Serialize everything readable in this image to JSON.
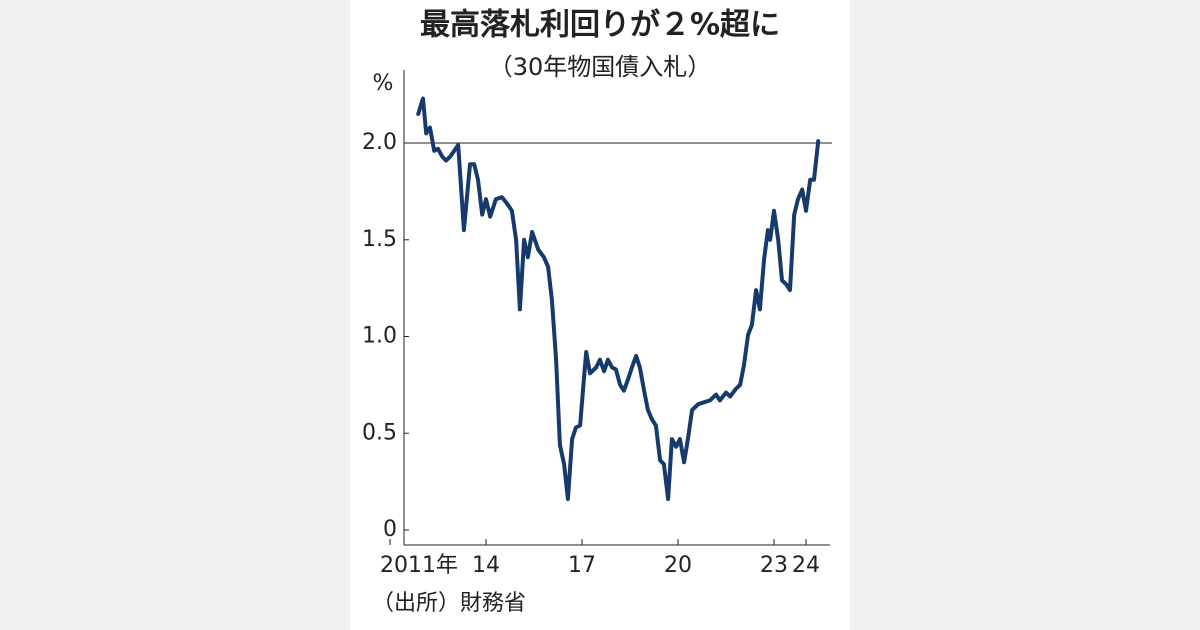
{
  "chart_data": {
    "type": "line",
    "title": "最高落札利回りが２%超に",
    "subtitle": "（30年物国債入札）",
    "y_label": "%",
    "source": "（出所）財務省",
    "x": [
      2011.88,
      2012.03,
      2012.13,
      2012.25,
      2012.38,
      2012.5,
      2012.63,
      2012.75,
      2012.88,
      2013.13,
      2013.31,
      2013.5,
      2013.63,
      2013.75,
      2013.88,
      2014,
      2014.13,
      2014.31,
      2014.5,
      2014.69,
      2014.81,
      2014.94,
      2015.06,
      2015.19,
      2015.31,
      2015.44,
      2015.63,
      2015.81,
      2015.94,
      2016.06,
      2016.19,
      2016.31,
      2016.44,
      2016.56,
      2016.69,
      2016.81,
      2016.94,
      2017.06,
      2017.13,
      2017.25,
      2017.44,
      2017.56,
      2017.69,
      2017.81,
      2017.94,
      2018.06,
      2018.19,
      2018.31,
      2018.44,
      2018.56,
      2018.69,
      2018.81,
      2018.94,
      2019.06,
      2019.19,
      2019.31,
      2019.44,
      2019.56,
      2019.69,
      2019.81,
      2019.94,
      2020.06,
      2020.19,
      2020.31,
      2020.44,
      2020.63,
      2020.81,
      2021,
      2021.19,
      2021.31,
      2021.5,
      2021.63,
      2021.81,
      2021.94,
      2022.06,
      2022.19,
      2022.31,
      2022.44,
      2022.56,
      2022.69,
      2022.81,
      2022.88,
      2023,
      2023.13,
      2023.25,
      2023.38,
      2023.5,
      2023.63,
      2023.75,
      2023.88,
      2024,
      2024.13,
      2024.25,
      2024.38
    ],
    "series": [
      {
        "name": "30年物国債 最高落札利回り",
        "color": "#163a6b",
        "values": [
          2.15,
          2.23,
          2.05,
          2.08,
          1.96,
          1.97,
          1.93,
          1.91,
          1.93,
          1.99,
          1.55,
          1.89,
          1.89,
          1.81,
          1.63,
          1.71,
          1.62,
          1.71,
          1.72,
          1.68,
          1.65,
          1.5,
          1.14,
          1.5,
          1.41,
          1.54,
          1.45,
          1.41,
          1.36,
          1.19,
          0.88,
          0.44,
          0.34,
          0.16,
          0.47,
          0.53,
          0.54,
          0.78,
          0.92,
          0.81,
          0.84,
          0.88,
          0.82,
          0.88,
          0.84,
          0.83,
          0.75,
          0.72,
          0.78,
          0.84,
          0.9,
          0.84,
          0.72,
          0.62,
          0.57,
          0.54,
          0.36,
          0.34,
          0.16,
          0.47,
          0.43,
          0.47,
          0.35,
          0.47,
          0.62,
          0.65,
          0.66,
          0.67,
          0.7,
          0.67,
          0.71,
          0.69,
          0.73,
          0.75,
          0.85,
          1.01,
          1.06,
          1.24,
          1.14,
          1.4,
          1.55,
          1.5,
          1.65,
          1.5,
          1.29,
          1.27,
          1.24,
          1.63,
          1.71,
          1.76,
          1.65,
          1.81,
          1.81,
          2.01
        ]
      }
    ],
    "xlim": [
      2011,
      2024.75
    ],
    "xticks": [
      {
        "value": 2011,
        "label": "2011年"
      },
      2014,
      2017,
      2020,
      2023,
      2024
    ],
    "xtick_labels": [
      "2011年",
      "14",
      "17",
      "20",
      "23",
      "24"
    ],
    "ylim": [
      0,
      2.3
    ],
    "yticks": [
      0,
      {
        "value": 0.5,
        "label": "0.5"
      },
      {
        "value": 1,
        "label": "1.0"
      },
      {
        "value": 1.5,
        "label": "1.5"
      },
      {
        "value": 2,
        "label": "2.0"
      }
    ],
    "reference_line": 2,
    "legend": false
  }
}
